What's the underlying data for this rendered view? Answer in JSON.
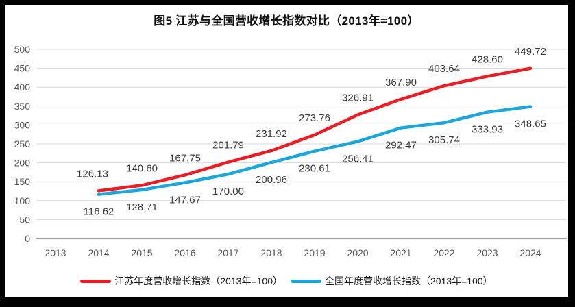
{
  "window": {
    "background": "#000000",
    "chart_background": "#FFFFFF"
  },
  "title": "图5  江苏与全国营收增长指数对比（2013年=100）",
  "chart_data": {
    "type": "line",
    "title": "图5  江苏与全国营收增长指数对比（2013年=100）",
    "categories": [
      "2013",
      "2014",
      "2015",
      "2016",
      "2017",
      "2018",
      "2019",
      "2020",
      "2021",
      "2022",
      "2023",
      "2024"
    ],
    "ylim": [
      0,
      500
    ],
    "ytick_step": 50,
    "grid": true,
    "legend_position": "bottom",
    "series": [
      {
        "key": "jiangsu",
        "name": "江苏年度营收增长指数（2013年=100）",
        "color": "#EC1C24",
        "label_position": "above",
        "points": [
          {
            "x": "2014",
            "y": 126.13,
            "label": "126.13",
            "dx": -9
          },
          {
            "x": "2015",
            "y": 140.6,
            "label": "140.60"
          },
          {
            "x": "2016",
            "y": 167.75,
            "label": "167.75"
          },
          {
            "x": "2017",
            "y": 201.79,
            "label": "201.79"
          },
          {
            "x": "2018",
            "y": 231.92,
            "label": "231.92"
          },
          {
            "x": "2019",
            "y": 273.76,
            "label": "273.76"
          },
          {
            "x": "2020",
            "y": 326.91,
            "label": "326.91"
          },
          {
            "x": "2021",
            "y": 367.9,
            "label": "367.90"
          },
          {
            "x": "2022",
            "y": 403.64,
            "label": "403.64"
          },
          {
            "x": "2023",
            "y": 428.6,
            "label": "428.60"
          },
          {
            "x": "2024",
            "y": 449.72,
            "label": "449.72"
          }
        ]
      },
      {
        "key": "national",
        "name": "全国年度营收增长指数（2013年=100）",
        "color": "#1BA7DC",
        "label_position": "below",
        "points": [
          {
            "x": "2014",
            "y": 116.62,
            "label": "116.62"
          },
          {
            "x": "2015",
            "y": 128.71,
            "label": "128.71"
          },
          {
            "x": "2016",
            "y": 147.67,
            "label": "147.67"
          },
          {
            "x": "2017",
            "y": 170.0,
            "label": "170.00"
          },
          {
            "x": "2018",
            "y": 200.96,
            "label": "200.96"
          },
          {
            "x": "2019",
            "y": 230.61,
            "label": "230.61"
          },
          {
            "x": "2020",
            "y": 256.41,
            "label": "256.41"
          },
          {
            "x": "2021",
            "y": 292.47,
            "label": "292.47"
          },
          {
            "x": "2022",
            "y": 305.74,
            "label": "305.74"
          },
          {
            "x": "2023",
            "y": 333.93,
            "label": "333.93"
          },
          {
            "x": "2024",
            "y": 348.65,
            "label": "348.65"
          }
        ]
      }
    ],
    "colors": {
      "gridline": "#D9D9D9",
      "axis_line": "#A6A6A6",
      "tick_label": "#595959",
      "data_label": "#3B3B3B"
    }
  }
}
